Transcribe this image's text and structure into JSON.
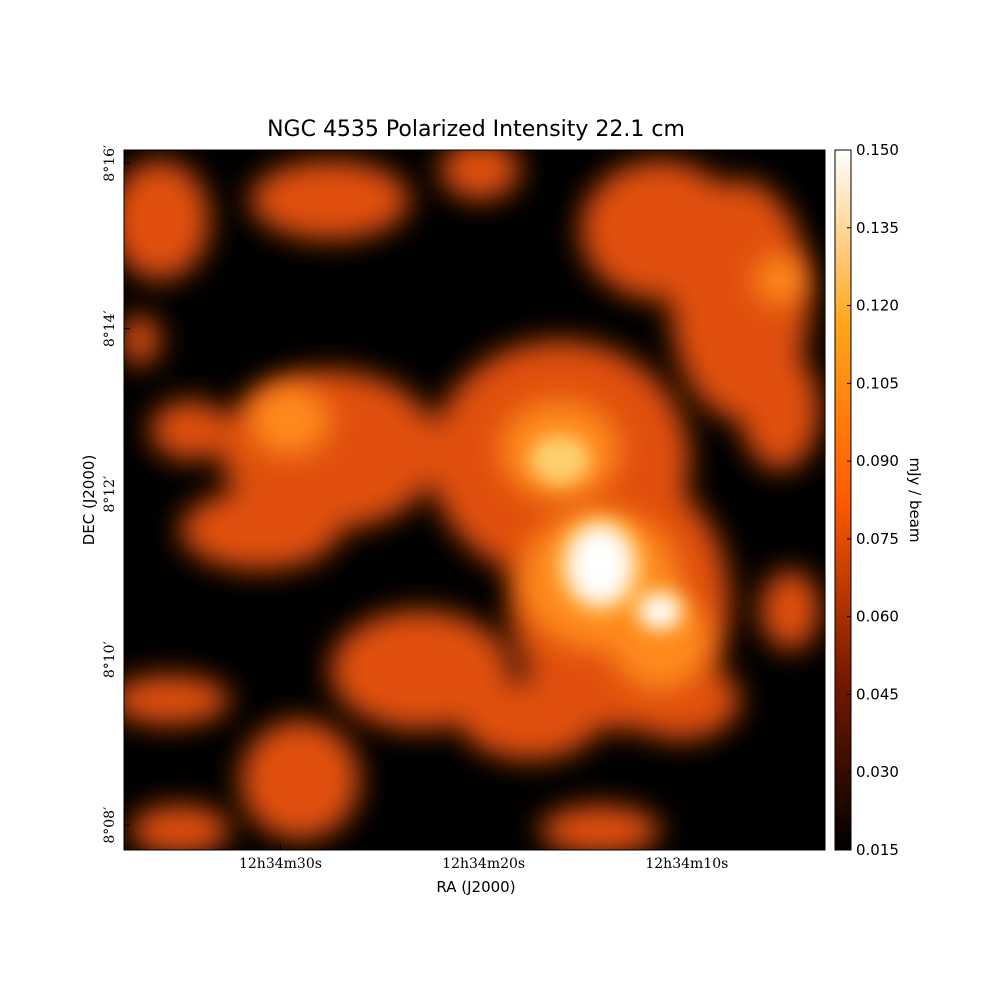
{
  "chart_data": {
    "type": "image",
    "title": "NGC 4535 Polarized Intensity 22.1 cm",
    "xlabel": "RA (J2000)",
    "ylabel": "DEC (J2000)",
    "xlim": [
      45277.7,
      45243.2
    ],
    "xticks": [
      {
        "value": 45270,
        "label": "12h34m30s"
      },
      {
        "value": 45260,
        "label": "12h34m20s"
      },
      {
        "value": 45250,
        "label": "12h34m10s"
      }
    ],
    "ylim": [
      487.7,
      496.16
    ],
    "yticks": [
      {
        "value": 488,
        "label": "8°08′"
      },
      {
        "value": 490,
        "label": "8°10′"
      },
      {
        "value": 492,
        "label": "8°12′"
      },
      {
        "value": 494,
        "label": "8°14′"
      },
      {
        "value": 496,
        "label": "8°16′"
      }
    ],
    "colorbar": {
      "label": "mJy / beam",
      "clim": [
        0.015,
        0.15
      ],
      "colors": [
        "#000000",
        "#7a1a00",
        "#ff5a00",
        "#ffa51a",
        "#ffffff"
      ],
      "ticks": [
        {
          "value": 0.015,
          "label": "0.015"
        },
        {
          "value": 0.03,
          "label": "0.030"
        },
        {
          "value": 0.045,
          "label": "0.045"
        },
        {
          "value": 0.06,
          "label": "0.060"
        },
        {
          "value": 0.075,
          "label": "0.075"
        },
        {
          "value": 0.09,
          "label": "0.090"
        },
        {
          "value": 0.105,
          "label": "0.105"
        },
        {
          "value": 0.12,
          "label": "0.120"
        },
        {
          "value": 0.135,
          "label": "0.135"
        },
        {
          "value": 0.15,
          "label": "0.150"
        }
      ]
    }
  }
}
